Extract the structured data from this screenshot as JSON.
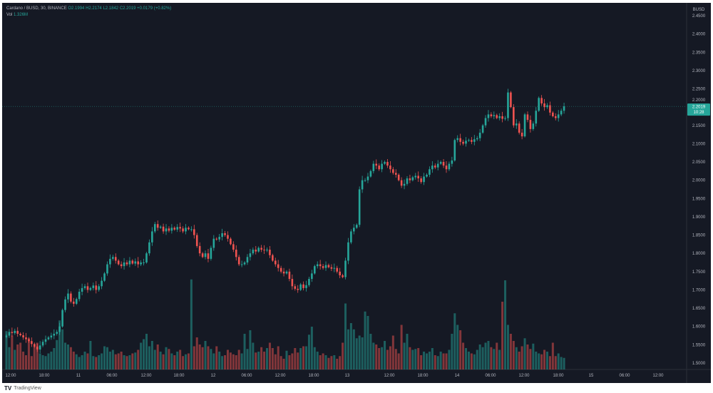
{
  "legend": {
    "symbol": "Cardano / BUSD, 30, BINANCE",
    "open": "O2.1994",
    "high": "H2.2174",
    "low": "L2.1842",
    "close": "C2.2019",
    "change": "+0.0179 (+0.82%)",
    "vol_label": "Vol",
    "vol_value": "1.326M"
  },
  "price_axis": {
    "currency": "BUSD",
    "last_price": "2.2019",
    "countdown": "10:28"
  },
  "footer": {
    "brand": "TradingView"
  },
  "colors": {
    "background": "#151924",
    "up": "#26a69a",
    "down": "#ef5350",
    "text": "#b2b5be"
  },
  "chart_data": {
    "type": "candlestick",
    "interval": "30",
    "ylim": [
      1.48,
      2.46
    ],
    "yticks": [
      "2.4500",
      "2.4000",
      "2.3500",
      "2.3000",
      "2.2500",
      "2.2000",
      "2.1500",
      "2.1000",
      "2.0500",
      "2.0000",
      "1.9500",
      "1.9000",
      "1.8500",
      "1.8000",
      "1.7500",
      "1.7000",
      "1.6500",
      "1.6000",
      "1.5500",
      "1.5000"
    ],
    "xticks": [
      "12:00",
      "18:00",
      "11",
      "06:00",
      "12:00",
      "18:00",
      "12",
      "06:00",
      "12:00",
      "18:00",
      "13",
      "12:00",
      "18:00",
      "14",
      "06:00",
      "12:00",
      "18:00",
      "15",
      "06:00",
      "12:00"
    ],
    "grid": false,
    "close": [
      1.575,
      1.585,
      1.582,
      1.588,
      1.58,
      1.576,
      1.57,
      1.565,
      1.56,
      1.552,
      1.545,
      1.537,
      1.548,
      1.558,
      1.565,
      1.57,
      1.575,
      1.58,
      1.585,
      1.6,
      1.645,
      1.674,
      1.69,
      1.668,
      1.662,
      1.675,
      1.695,
      1.705,
      1.71,
      1.7,
      1.705,
      1.712,
      1.7,
      1.71,
      1.725,
      1.745,
      1.77,
      1.785,
      1.79,
      1.78,
      1.77,
      1.765,
      1.775,
      1.77,
      1.78,
      1.772,
      1.778,
      1.77,
      1.775,
      1.775,
      1.8,
      1.83,
      1.86,
      1.88,
      1.87,
      1.873,
      1.86,
      1.868,
      1.862,
      1.87,
      1.865,
      1.872,
      1.868,
      1.86,
      1.87,
      1.866,
      1.866,
      1.85,
      1.82,
      1.8,
      1.79,
      1.8,
      1.785,
      1.815,
      1.84,
      1.838,
      1.845,
      1.855,
      1.85,
      1.84,
      1.825,
      1.81,
      1.79,
      1.77,
      1.77,
      1.775,
      1.79,
      1.8,
      1.81,
      1.805,
      1.815,
      1.81,
      1.808,
      1.81,
      1.795,
      1.78,
      1.77,
      1.76,
      1.75,
      1.745,
      1.75,
      1.73,
      1.71,
      1.703,
      1.7,
      1.715,
      1.705,
      1.713,
      1.73,
      1.745,
      1.765,
      1.77,
      1.765,
      1.76,
      1.768,
      1.762,
      1.758,
      1.76,
      1.75,
      1.74,
      1.735,
      1.78,
      1.83,
      1.86,
      1.87,
      1.878,
      1.975,
      2.0,
      2.0,
      2.01,
      2.025,
      2.045,
      2.04,
      2.03,
      2.045,
      2.05,
      2.04,
      2.03,
      2.02,
      2.015,
      2.0,
      1.985,
      1.99,
      2.005,
      2.0,
      2.008,
      2.012,
      2.005,
      1.995,
      2.01,
      2.015,
      2.03,
      2.04,
      2.035,
      2.045,
      2.05,
      2.04,
      2.03,
      2.045,
      2.054,
      2.11,
      2.115,
      2.105,
      2.1,
      2.108,
      2.11,
      2.105,
      2.112,
      2.115,
      2.13,
      2.15,
      2.17,
      2.18,
      2.175,
      2.178,
      2.17,
      2.175,
      2.168,
      2.17,
      2.24,
      2.2,
      2.15,
      2.155,
      2.13,
      2.12,
      2.18,
      2.165,
      2.14,
      2.155,
      2.19,
      2.225,
      2.21,
      2.2,
      2.205,
      2.185,
      2.175,
      2.17,
      2.18,
      2.19,
      2.202
    ],
    "volume_millions": [
      4.3,
      2.5,
      3.8,
      2.2,
      2.8,
      3.0,
      2.0,
      1.6,
      3.5,
      1.5,
      2.6,
      3.0,
      1.8,
      1.6,
      1.5,
      1.8,
      2.0,
      2.4,
      3.3,
      5.5,
      4.5,
      3.0,
      2.8,
      2.5,
      2.0,
      1.7,
      1.4,
      1.6,
      2.0,
      1.8,
      3.2,
      1.5,
      1.4,
      1.6,
      1.8,
      2.6,
      2.5,
      2.0,
      2.2,
      1.7,
      1.8,
      2.0,
      1.6,
      1.5,
      1.6,
      1.8,
      1.9,
      2.2,
      3.0,
      3.4,
      4.0,
      2.6,
      3.2,
      2.2,
      2.8,
      2.0,
      1.7,
      2.5,
      2.3,
      1.8,
      1.6,
      2.0,
      2.2,
      1.5,
      1.7,
      1.8,
      10.1,
      2.6,
      3.6,
      2.8,
      2.5,
      3.2,
      2.6,
      2.3,
      1.8,
      2.6,
      2.0,
      1.5,
      1.6,
      2.2,
      1.9,
      1.7,
      1.6,
      2.2,
      1.8,
      4.0,
      2.3,
      4.4,
      3.0,
      1.9,
      2.0,
      2.5,
      2.0,
      2.4,
      3.0,
      2.4,
      1.7,
      2.6,
      1.5,
      1.2,
      2.1,
      1.6,
      1.8,
      2.4,
      1.9,
      2.4,
      2.6,
      2.6,
      3.9,
      4.8,
      2.5,
      2.0,
      1.6,
      1.8,
      1.6,
      1.3,
      1.5,
      1.6,
      1.2,
      1.5,
      3.0,
      7.4,
      4.5,
      5.2,
      4.5,
      3.5,
      3.8,
      3.6,
      6.5,
      6.0,
      4.0,
      3.0,
      2.8,
      2.4,
      2.5,
      3.2,
      2.2,
      2.6,
      3.8,
      2.3,
      1.8,
      5.0,
      3.0,
      4.0,
      2.5,
      2.2,
      2.3,
      2.4,
      1.6,
      2.0,
      1.8,
      2.0,
      2.4,
      1.6,
      1.5,
      2.0,
      1.8,
      1.8,
      2.2,
      4.0,
      6.3,
      5.0,
      4.4,
      3.0,
      2.4,
      2.0,
      1.8,
      1.7,
      2.2,
      2.8,
      2.5,
      3.0,
      3.2,
      2.5,
      2.3,
      3.0,
      2.2,
      7.6,
      10.0,
      5.0,
      4.0,
      3.2,
      2.5,
      2.0,
      2.6,
      3.5,
      2.8,
      2.3,
      2.9,
      2.0,
      1.8,
      1.7,
      2.2,
      2.0,
      1.5,
      3.0,
      1.5,
      1.8,
      1.4,
      1.3
    ],
    "last_price": 2.2019
  }
}
